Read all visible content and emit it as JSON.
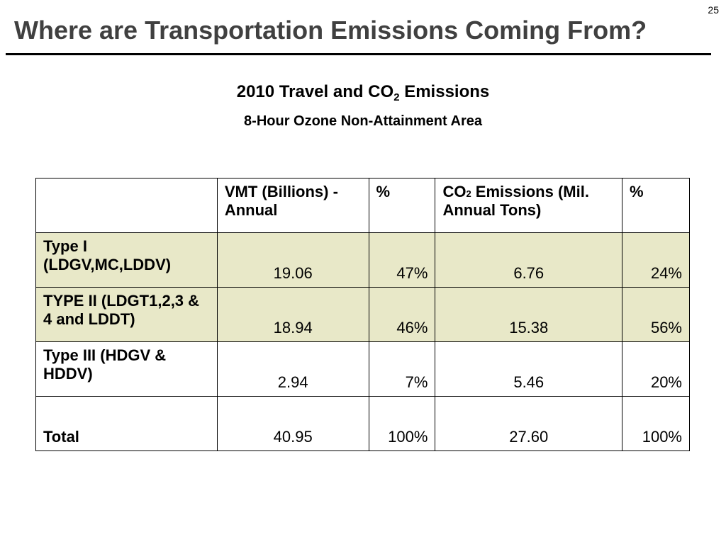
{
  "page_number": "25",
  "title": "Where are Transportation Emissions Coming From?",
  "heading": {
    "prefix": "2010 Travel and CO",
    "subscript": "2",
    "suffix": " Emissions"
  },
  "subheading": "8-Hour Ozone Non-Attainment Area",
  "table": {
    "headers": {
      "blank": "",
      "vmt": "VMT (Billions) - Annual",
      "vmt_pct": "%",
      "co2_prefix": "CO",
      "co2_sub": "2",
      "co2_suffix": " Emissions (Mil. Annual Tons)",
      "co2_pct": "%"
    },
    "rows": [
      {
        "label": "Type I (LDGV,MC,LDDV)",
        "vmt": "19.06",
        "vmt_pct": "47%",
        "co2": "6.76",
        "co2_pct": "24%"
      },
      {
        "label": "TYPE II (LDGT1,2,3 & 4 and LDDT)",
        "vmt": "18.94",
        "vmt_pct": "46%",
        "co2": "15.38",
        "co2_pct": "56%"
      },
      {
        "label": "Type III (HDGV & HDDV)",
        "vmt": "2.94",
        "vmt_pct": "7%",
        "co2": "5.46",
        "co2_pct": "20%"
      },
      {
        "label": "Total",
        "vmt": "40.95",
        "vmt_pct": "100%",
        "co2": "27.60",
        "co2_pct": "100%"
      }
    ]
  },
  "colors": {
    "title": "#404040",
    "shaded_row": "#e8e8c8",
    "rule": "#000000"
  }
}
